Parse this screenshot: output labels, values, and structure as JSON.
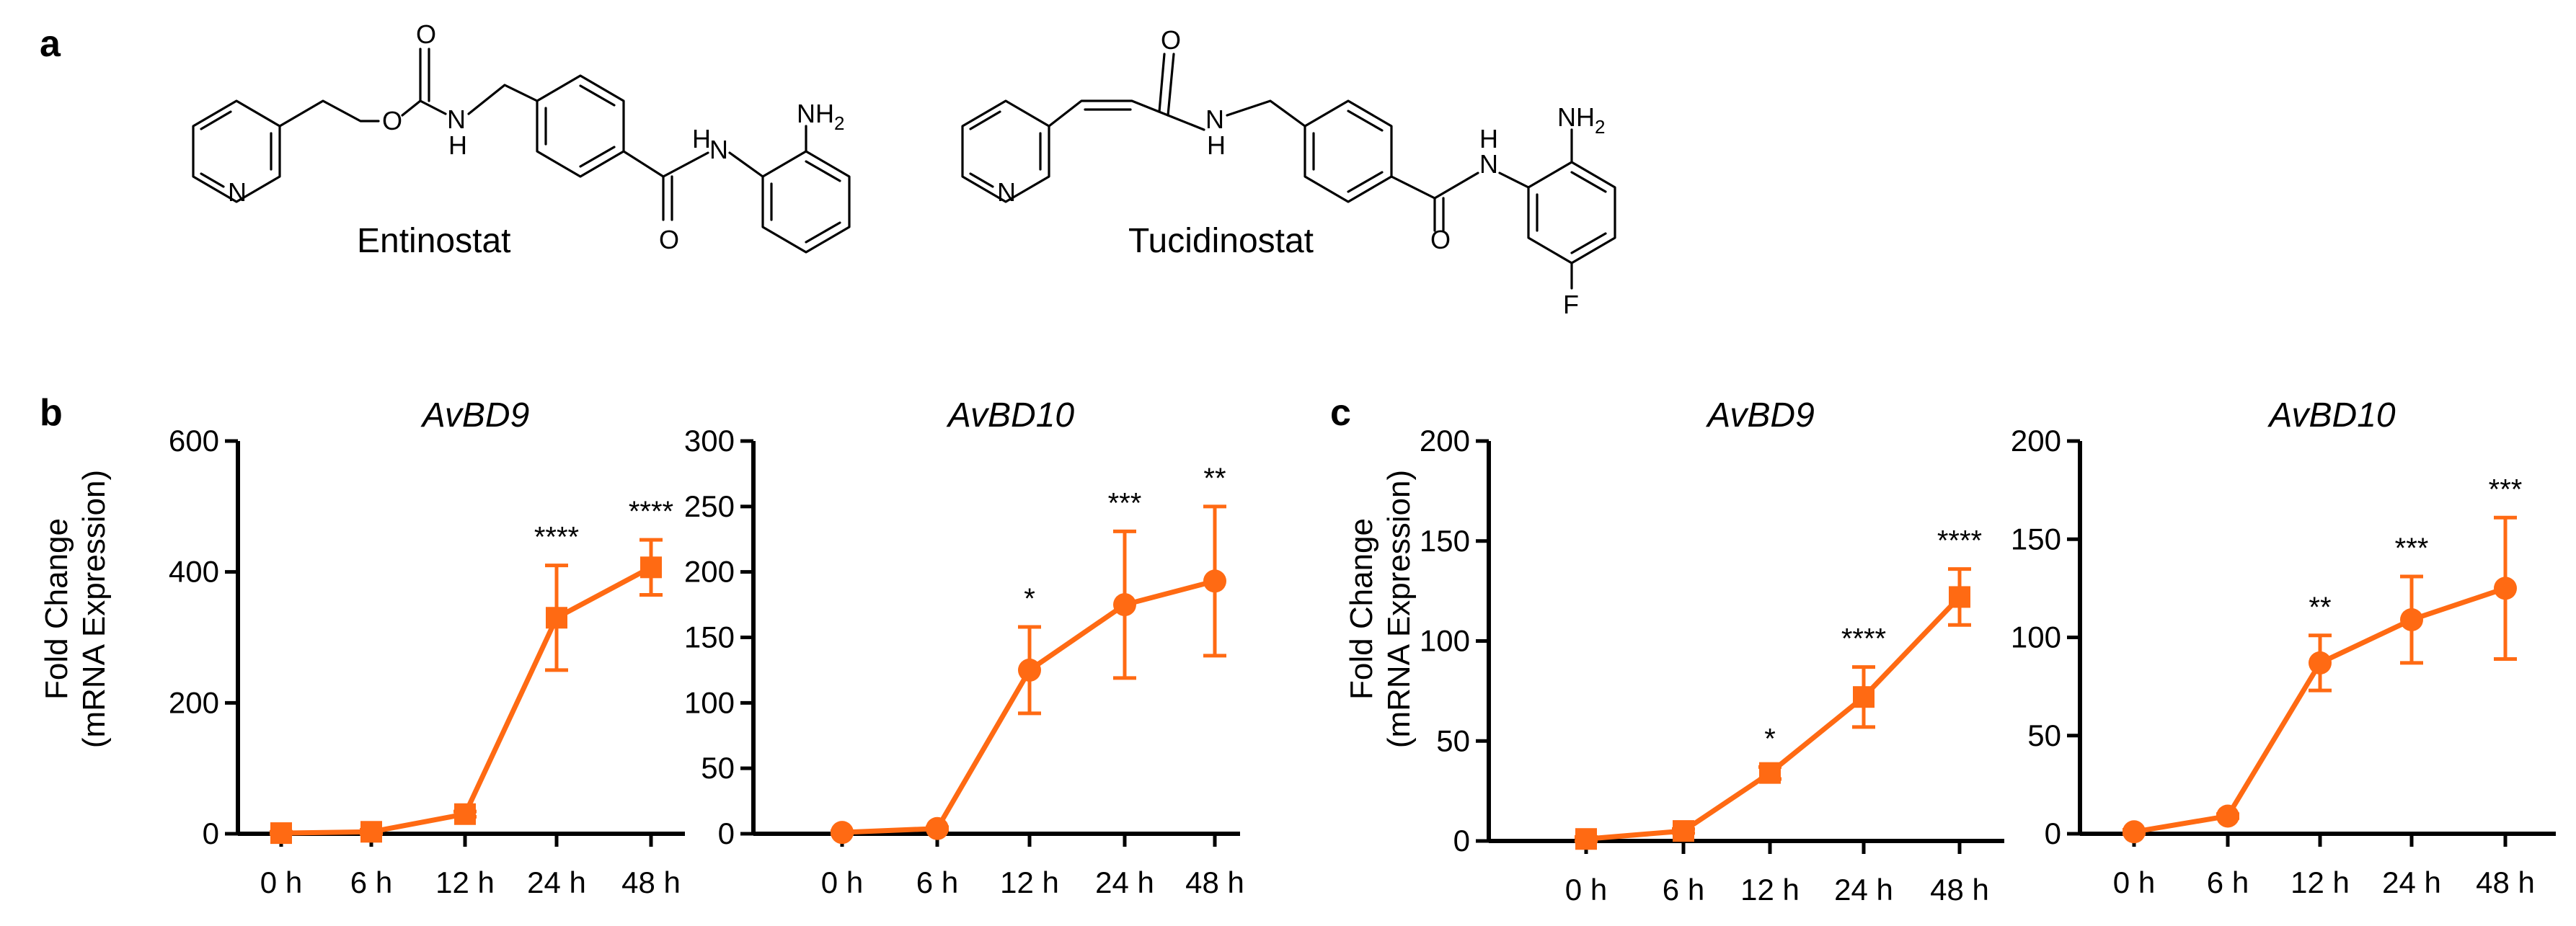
{
  "panel_labels": {
    "a": "a",
    "b": "b",
    "c": "c"
  },
  "compounds": [
    {
      "name": "Entinostat",
      "atoms": {
        "o_carbonyl": "O",
        "o_ester": "O",
        "nh_carbamate": "H",
        "n_carbamate": "N",
        "o_amide": "O",
        "n_amide": "N",
        "h_amide": "H",
        "nh2": "NH",
        "nh2_sub": "2",
        "n_pyridine": "N"
      }
    },
    {
      "name": "Tucidinostat",
      "atoms": {
        "o_carbonyl": "O",
        "n_amide1": "N",
        "h_amide1": "H",
        "o_amide": "O",
        "n_amide2": "N",
        "h_amide2": "H",
        "nh2": "NH",
        "nh2_sub": "2",
        "n_pyridine": "N",
        "f": "F"
      }
    }
  ],
  "y_axis_label_line1": "Fold Change",
  "y_axis_label_line2": "(mRNA Expression)",
  "colors": {
    "series": "#FF6A13",
    "axis": "#000000"
  },
  "chart_data": [
    {
      "type": "line",
      "panel": "b",
      "title": "AvBD9",
      "xlabel": "",
      "ylabel": "Fold Change (mRNA Expression)",
      "categories": [
        "0 h",
        "6 h",
        "12 h",
        "24 h",
        "48 h"
      ],
      "marker": "square",
      "ylim": [
        0,
        600
      ],
      "yticks": [
        0,
        200,
        400,
        600
      ],
      "series": [
        {
          "values": [
            1,
            3,
            30,
            330,
            407
          ],
          "errors": [
            2,
            3,
            4,
            80,
            42
          ]
        }
      ],
      "significance": [
        "",
        "",
        "",
        "****",
        "****"
      ]
    },
    {
      "type": "line",
      "panel": "b",
      "title": "AvBD10",
      "xlabel": "",
      "ylabel": "",
      "categories": [
        "0 h",
        "6 h",
        "12 h",
        "24 h",
        "48 h"
      ],
      "marker": "circle",
      "ylim": [
        0,
        300
      ],
      "yticks": [
        0,
        50,
        100,
        150,
        200,
        250,
        300
      ],
      "series": [
        {
          "values": [
            1,
            4,
            125,
            175,
            193
          ],
          "errors": [
            1,
            1,
            33,
            56,
            57
          ]
        }
      ],
      "significance": [
        "",
        "",
        "*",
        "***",
        "**"
      ]
    },
    {
      "type": "line",
      "panel": "c",
      "title": "AvBD9",
      "xlabel": "",
      "ylabel": "Fold Change (mRNA Expression)",
      "categories": [
        "0 h",
        "6 h",
        "12 h",
        "24 h",
        "48 h"
      ],
      "marker": "square",
      "ylim": [
        0,
        200
      ],
      "yticks": [
        0,
        50,
        100,
        150,
        200
      ],
      "series": [
        {
          "values": [
            1,
            5,
            34,
            72,
            122
          ],
          "errors": [
            1,
            1,
            3,
            15,
            14
          ]
        }
      ],
      "significance": [
        "",
        "",
        "*",
        "****",
        "****"
      ]
    },
    {
      "type": "line",
      "panel": "c",
      "title": "AvBD10",
      "xlabel": "",
      "ylabel": "",
      "categories": [
        "0 h",
        "6 h",
        "12 h",
        "24 h",
        "48 h"
      ],
      "marker": "circle",
      "ylim": [
        0,
        200
      ],
      "yticks": [
        0,
        50,
        100,
        150,
        200
      ],
      "series": [
        {
          "values": [
            1,
            9,
            87,
            109,
            125
          ],
          "errors": [
            1,
            1,
            14,
            22,
            36
          ]
        }
      ],
      "significance": [
        "",
        "",
        "**",
        "***",
        "***"
      ]
    }
  ]
}
